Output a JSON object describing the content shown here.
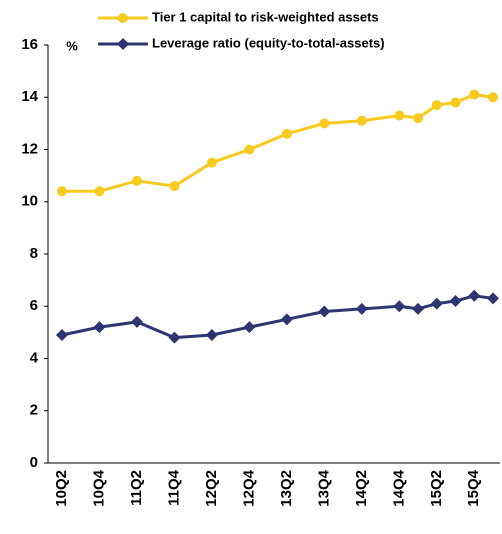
{
  "chart_data": {
    "type": "line",
    "y_label": "%",
    "categories": [
      "10Q2",
      null,
      "10Q4",
      null,
      "11Q2",
      null,
      "11Q4",
      null,
      "12Q2",
      null,
      "12Q4",
      null,
      "13Q2",
      null,
      "13Q4",
      null,
      "14Q2",
      null,
      "14Q4",
      null,
      "15Q2",
      null,
      "15Q4",
      null
    ],
    "series": [
      {
        "name": "Tier 1 capital to risk-weighted assets",
        "color": "#f7cb1e",
        "marker": "circle",
        "values": [
          10.4,
          null,
          10.4,
          null,
          10.8,
          null,
          10.6,
          null,
          11.5,
          null,
          12.0,
          null,
          12.6,
          null,
          13.0,
          null,
          13.1,
          null,
          13.3,
          13.2,
          13.7,
          13.8,
          14.1,
          14.0
        ]
      },
      {
        "name": "Leverage ratio (equity-to-total-assets)",
        "color": "#2f3573",
        "marker": "diamond",
        "values": [
          4.9,
          null,
          5.2,
          null,
          5.4,
          null,
          4.8,
          null,
          4.9,
          null,
          5.2,
          null,
          5.5,
          null,
          5.8,
          null,
          5.9,
          null,
          6.0,
          5.9,
          6.1,
          6.2,
          6.4,
          6.3
        ]
      }
    ],
    "ylim": [
      0,
      16
    ],
    "yticks": [
      0,
      2,
      4,
      6,
      8,
      10,
      12,
      14,
      16
    ],
    "grid": false
  }
}
